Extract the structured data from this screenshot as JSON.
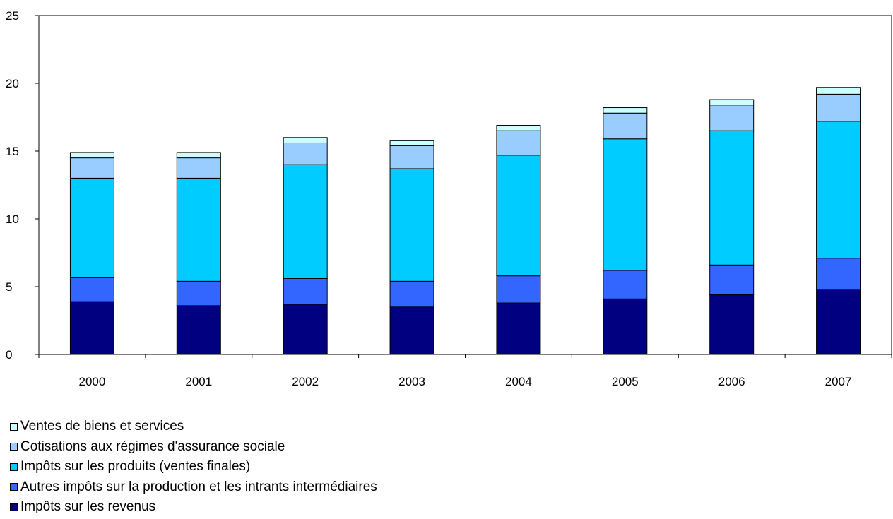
{
  "chart_data": {
    "type": "bar",
    "stacked": true,
    "categories": [
      "2000",
      "2001",
      "2002",
      "2003",
      "2004",
      "2005",
      "2006",
      "2007"
    ],
    "series": [
      {
        "name": "Impôts sur les revenus",
        "color": "#000080",
        "values": [
          3.9,
          3.6,
          3.7,
          3.5,
          3.8,
          4.1,
          4.4,
          4.8
        ]
      },
      {
        "name": "Autres impôts sur la production et les intrants intermédiaires",
        "color": "#3366ff",
        "values": [
          1.8,
          1.8,
          1.9,
          1.9,
          2.0,
          2.1,
          2.2,
          2.3
        ]
      },
      {
        "name": "Impôts sur les produits (ventes finales)",
        "color": "#00ccff",
        "values": [
          7.3,
          7.6,
          8.4,
          8.3,
          8.9,
          9.7,
          9.9,
          10.1
        ]
      },
      {
        "name": "Cotisations aux régimes d'assurance sociale",
        "color": "#99ccff",
        "values": [
          1.5,
          1.5,
          1.6,
          1.7,
          1.8,
          1.9,
          1.9,
          2.0
        ]
      },
      {
        "name": "Ventes de biens et services",
        "color": "#ccffff",
        "values": [
          0.4,
          0.4,
          0.4,
          0.4,
          0.4,
          0.4,
          0.4,
          0.5
        ]
      }
    ],
    "yticks": [
      0,
      5,
      10,
      15,
      20,
      25
    ],
    "ylim": [
      0,
      25
    ],
    "grid": false,
    "legend_position": "bottom-left",
    "legend_order": [
      4,
      3,
      2,
      1,
      0
    ]
  }
}
